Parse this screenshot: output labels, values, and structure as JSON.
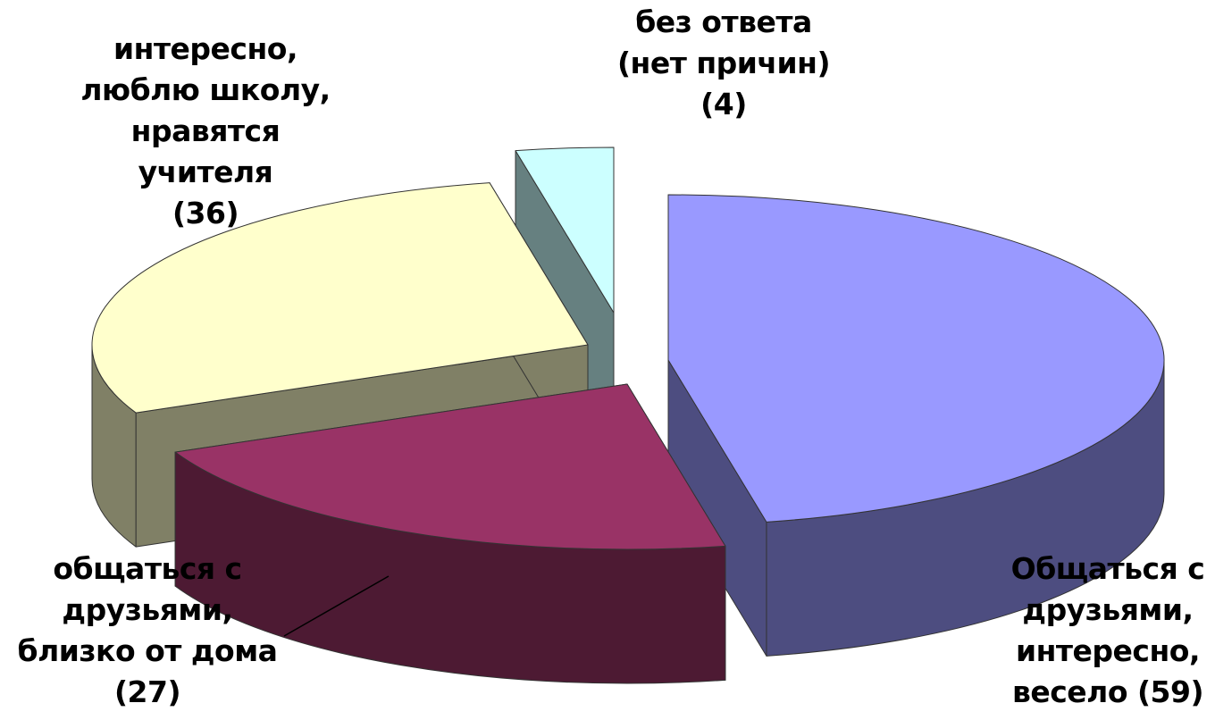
{
  "chart_data": {
    "type": "pie",
    "style": "3d-exploded",
    "title": "",
    "slices": [
      {
        "label": "Общаться с друзьями, интересно, весело",
        "value": 59,
        "color": "#9999ff",
        "side_color": "#4d4d80",
        "label_lines": [
          "Общаться с",
          "друзьями,",
          "интересно,",
          "весело  (59)"
        ]
      },
      {
        "label": "общаться с друзьями, близко от дома",
        "value": 27,
        "color": "#993366",
        "side_color": "#4d1a33",
        "label_lines": [
          "общаться с",
          "друзьями,",
          "близко от дома",
          "(27)"
        ]
      },
      {
        "label": "интересно, люблю школу, нравятся учителя",
        "value": 36,
        "color": "#ffffcc",
        "side_color": "#808066",
        "label_lines": [
          "интересно,",
          "люблю школу,",
          "нравятся",
          "учителя",
          "(36)"
        ]
      },
      {
        "label": "без ответа (нет причин)",
        "value": 4,
        "color": "#ccffff",
        "side_color": "#668080",
        "label_lines": [
          "без ответа",
          "(нет причин)",
          "(4)"
        ]
      }
    ]
  }
}
